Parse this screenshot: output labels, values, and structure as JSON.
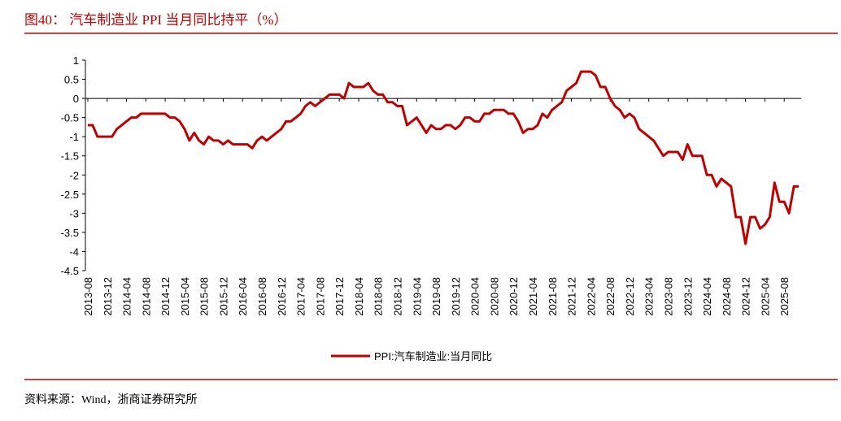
{
  "chart_data": {
    "type": "line",
    "title": "图40：  汽车制造业 PPI 当月同比持平（%）",
    "source": "资料来源：Wind，浙商证券研究所",
    "categories": [
      "2013-08",
      null,
      null,
      null,
      "2013-12",
      null,
      null,
      null,
      "2014-04",
      null,
      null,
      null,
      "2014-08",
      null,
      null,
      null,
      "2014-12",
      null,
      null,
      null,
      "2015-04",
      null,
      null,
      null,
      "2015-08",
      null,
      null,
      null,
      "2015-12",
      null,
      null,
      null,
      "2016-04",
      null,
      null,
      null,
      "2016-08",
      null,
      null,
      null,
      "2016-12",
      null,
      null,
      null,
      "2017-04",
      null,
      null,
      null,
      "2017-08",
      null,
      null,
      null,
      "2017-12",
      null,
      null,
      null,
      "2018-04",
      null,
      null,
      null,
      "2018-08",
      null,
      null,
      null,
      "2018-12",
      null,
      null,
      null,
      "2019-04",
      null,
      null,
      null,
      "2019-08",
      null,
      null,
      null,
      "2019-12",
      null,
      null,
      null,
      "2020-04",
      null,
      null,
      null,
      "2020-08",
      null,
      null,
      null,
      "2020-12",
      null,
      null,
      null,
      "2021-04",
      null,
      null,
      null,
      "2021-08",
      null,
      null,
      null,
      "2021-12",
      null,
      null,
      null,
      "2022-04",
      null,
      null,
      null,
      "2022-08",
      null,
      null,
      null,
      "2022-12",
      null,
      null,
      null,
      "2023-04",
      null,
      null,
      null,
      "2023-08",
      null,
      null,
      null,
      "2023-12",
      null,
      null,
      null,
      "2024-04",
      null,
      null,
      null,
      "2024-08",
      null,
      null,
      null,
      "2024-12",
      null,
      null,
      null,
      "2025-04",
      null,
      null,
      null,
      "2025-08",
      null,
      null,
      null
    ],
    "series": [
      {
        "name": "PPI:汽车制造业:当月同比",
        "color": "#c00000",
        "values": [
          -0.7,
          -0.7,
          -1.0,
          -1.0,
          -1.0,
          -1.0,
          -0.8,
          -0.7,
          -0.6,
          -0.5,
          -0.5,
          -0.4,
          -0.4,
          -0.4,
          -0.4,
          -0.4,
          -0.4,
          -0.5,
          -0.5,
          -0.6,
          -0.8,
          -1.1,
          -0.9,
          -1.1,
          -1.2,
          -1.0,
          -1.1,
          -1.1,
          -1.2,
          -1.1,
          -1.2,
          -1.2,
          -1.2,
          -1.2,
          -1.3,
          -1.1,
          -1.0,
          -1.1,
          -1.0,
          -0.9,
          -0.8,
          -0.6,
          -0.6,
          -0.5,
          -0.4,
          -0.2,
          -0.1,
          -0.2,
          -0.1,
          0,
          0.1,
          0.1,
          0.1,
          0,
          0.4,
          0.3,
          0.3,
          0.3,
          0.4,
          0.2,
          0.1,
          0.1,
          -0.1,
          -0.1,
          -0.2,
          -0.2,
          -0.7,
          -0.6,
          -0.5,
          -0.7,
          -0.9,
          -0.7,
          -0.8,
          -0.8,
          -0.7,
          -0.7,
          -0.8,
          -0.7,
          -0.5,
          -0.5,
          -0.6,
          -0.6,
          -0.4,
          -0.4,
          -0.3,
          -0.3,
          -0.3,
          -0.4,
          -0.4,
          -0.6,
          -0.9,
          -0.8,
          -0.8,
          -0.7,
          -0.4,
          -0.5,
          -0.3,
          -0.2,
          -0.1,
          0.2,
          0.3,
          0.4,
          0.7,
          0.7,
          0.7,
          0.6,
          0.3,
          0.3,
          0,
          -0.2,
          -0.3,
          -0.5,
          -0.4,
          -0.5,
          -0.8,
          -0.9,
          -1.0,
          -1.1,
          -1.3,
          -1.5,
          -1.4,
          -1.4,
          -1.4,
          -1.6,
          -1.2,
          -1.5,
          -1.5,
          -1.5,
          -2.0,
          -2.0,
          -2.3,
          -2.1,
          -2.2,
          -2.3,
          -3.1,
          -3.1,
          -3.8,
          -3.1,
          -3.1,
          -3.4,
          -3.3,
          -3.1,
          -2.2,
          -2.7,
          -2.7,
          -3.0,
          -2.3,
          -2.3
        ]
      }
    ],
    "ylim": [
      -4.5,
      1
    ],
    "yticks": [
      1,
      0.5,
      0,
      -0.5,
      -1,
      -1.5,
      -2,
      -2.5,
      -3,
      -3.5,
      -4,
      -4.5
    ],
    "legend": "bottom"
  }
}
